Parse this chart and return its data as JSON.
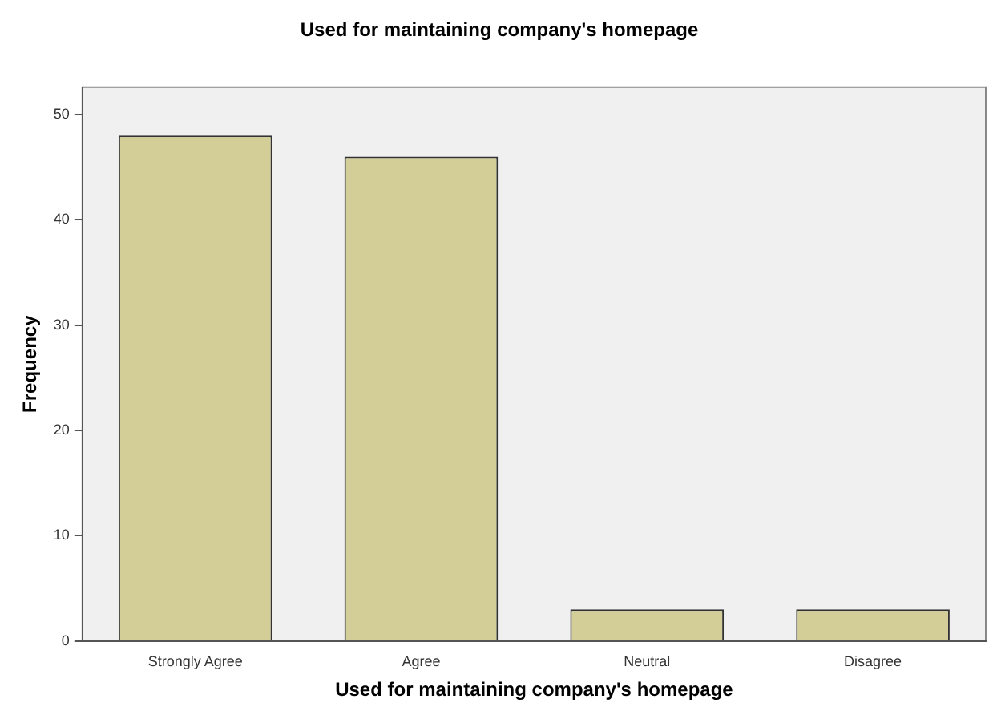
{
  "chart_data": {
    "type": "bar",
    "title": "Used for maintaining company's homepage",
    "xlabel": "Used for maintaining company's homepage",
    "ylabel": "Frequency",
    "categories": [
      "Strongly Agree",
      "Agree",
      "Neutral",
      "Disagree"
    ],
    "values": [
      48,
      46,
      3,
      3
    ],
    "color": "#d3ce97",
    "ylim": [
      0,
      52.6
    ],
    "yticks": [
      0,
      10,
      20,
      30,
      40,
      50
    ],
    "grid": false,
    "legend": false
  }
}
